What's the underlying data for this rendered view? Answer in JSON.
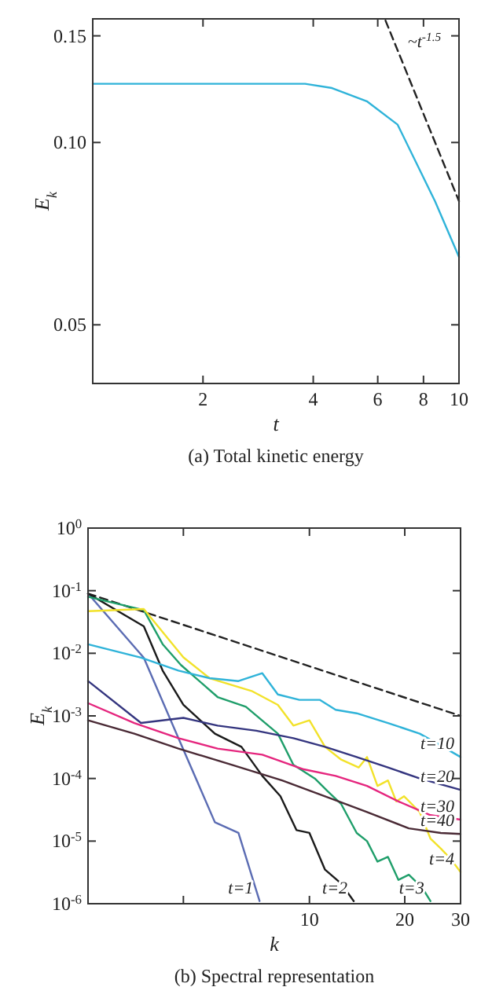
{
  "chart_data": [
    {
      "type": "line",
      "title": "(a) Total kinetic energy",
      "xlabel": "t",
      "ylabel": "E$_{k}$",
      "log": "xy",
      "xlim": [
        1,
        10
      ],
      "ylim": [
        0.04,
        0.16
      ],
      "xticks": [
        2,
        4,
        6,
        8,
        10
      ],
      "yticks": [
        {
          "value": 0.05,
          "label": "0.05"
        },
        {
          "value": 0.1,
          "label": "0.10"
        },
        {
          "value": 0.15,
          "label": "0.15"
        }
      ],
      "grid": false,
      "series": [
        {
          "color": "#2fb3d9",
          "x": [
            1,
            2,
            3,
            3.8,
            4.5,
            5.6,
            6.8,
            8.6,
            10
          ],
          "values": [
            0.125,
            0.125,
            0.125,
            0.125,
            0.123,
            0.117,
            0.107,
            0.08,
            0.0647
          ]
        },
        {
          "color": "#222222",
          "line_style": "dashed",
          "x": [
            6.3,
            10
          ],
          "values": [
            0.159,
            0.08
          ]
        }
      ],
      "annotations": [
        "~t$^{-1.5}$"
      ]
    },
    {
      "type": "line",
      "title": "(b) Spectral representation",
      "xlabel": "k",
      "ylabel": "E$_{k}$",
      "log": "xy",
      "xlim": [
        2,
        30
      ],
      "ylim": [
        1e-06,
        1
      ],
      "xticks": [
        {
          "value": 4,
          "label": null
        },
        10,
        20,
        30
      ],
      "yticks": [
        {
          "value": 1e-06,
          "label": "10$^{-6}$"
        },
        {
          "value": 1e-05,
          "label": "10$^{-5}$"
        },
        {
          "value": 0.0001,
          "label": "10$^{-4}$"
        },
        {
          "value": 0.001,
          "label": "10$^{-3}$"
        },
        {
          "value": 0.01,
          "label": "10$^{-2}$"
        },
        {
          "value": 0.1,
          "label": "10$^{-1}$"
        },
        {
          "value": 1,
          "label": "10$^{0}$"
        }
      ],
      "grid": false,
      "series": [
        {
          "color": "#222222",
          "line_style": "dashed",
          "x": [
            2,
            30
          ],
          "values": [
            0.09,
            0.001
          ]
        },
        {
          "name": "t=1",
          "color": "#5b6cb3",
          "x": [
            2,
            3.0,
            3.86,
            5.03,
            5.97,
            6.96
          ],
          "values": [
            0.09,
            0.0085,
            0.00044,
            2e-05,
            1.35e-05,
            1.1e-06
          ]
        },
        {
          "name": "t=2",
          "color": "#1a1a1a",
          "x": [
            2,
            3.0,
            3.44,
            4.0,
            5.03,
            6.1,
            7.1,
            8.1,
            9.1,
            10,
            11.2,
            12.6,
            13.8
          ],
          "values": [
            0.09,
            0.027,
            0.0053,
            0.0015,
            0.00052,
            0.00032,
            0.00011,
            5.2e-05,
            1.5e-05,
            1.35e-05,
            3.5e-06,
            2.1e-06,
            1.1e-06
          ]
        },
        {
          "name": "t=3",
          "color": "#1f9e6a",
          "x": [
            2,
            3.0,
            3.44,
            3.93,
            5.13,
            6.3,
            7.95,
            8.9,
            10.4,
            11.4,
            12.6,
            14.1,
            15.2,
            16.4,
            17.7,
            19.1,
            20.6,
            22.7,
            24.1
          ],
          "values": [
            0.08,
            0.049,
            0.014,
            0.0065,
            0.002,
            0.0014,
            0.00052,
            0.000165,
            0.0001,
            6.3e-05,
            3.9e-05,
            1.35e-05,
            1e-05,
            4.7e-06,
            5.6e-06,
            2.4e-06,
            2.9e-06,
            1.8e-06,
            1.1e-06
          ]
        },
        {
          "name": "t=4",
          "color": "#f2e22a",
          "x": [
            2,
            3.0,
            4.0,
            4.84,
            6.57,
            7.95,
            8.9,
            10,
            11.2,
            12.6,
            14.3,
            15.2,
            16.4,
            17.7,
            18.8,
            19.9,
            22.3,
            24.1,
            26,
            28,
            30
          ],
          "values": [
            0.047,
            0.051,
            0.0086,
            0.004,
            0.0025,
            0.0015,
            0.0007,
            0.00085,
            0.00032,
            0.0002,
            0.00015,
            0.00022,
            7.6e-05,
            9.3e-05,
            4.3e-05,
            5.2e-05,
            2.9e-05,
            1.1e-05,
            7.6e-06,
            5.1e-06,
            3.2e-06
          ]
        },
        {
          "name": "t=10",
          "color": "#2fb3d9",
          "x": [
            2,
            2.94,
            3.86,
            4.84,
            5.97,
            7.1,
            7.95,
            9.3,
            10.8,
            12.1,
            14.1,
            17.7,
            22.3,
            27,
            30
          ],
          "values": [
            0.0139,
            0.0085,
            0.0053,
            0.004,
            0.0036,
            0.0048,
            0.0022,
            0.0018,
            0.0018,
            0.00125,
            0.0011,
            0.00077,
            0.00052,
            0.0003,
            0.00022
          ]
        },
        {
          "name": "t=20",
          "color": "#34357f",
          "x": [
            2,
            2.94,
            4.0,
            5.13,
            6.8,
            8.9,
            11.2,
            14.1,
            17.7,
            22.3,
            30
          ],
          "values": [
            0.0036,
            0.00077,
            0.00093,
            0.0007,
            0.00058,
            0.00044,
            0.00032,
            0.00022,
            0.00015,
            0.0001,
            6.6e-05
          ]
        },
        {
          "name": "t=30",
          "color": "#e5267e",
          "x": [
            2,
            2.8,
            3.86,
            5.13,
            7.1,
            9.6,
            12.1,
            15.2,
            19.1,
            24.1,
            30
          ],
          "values": [
            0.0016,
            0.00077,
            0.00044,
            0.0003,
            0.00024,
            0.00014,
            0.00011,
            7.6e-05,
            4.3e-05,
            2.6e-05,
            2.2e-05
          ]
        },
        {
          "name": "t=40",
          "color": "#4a2a35",
          "x": [
            2,
            2.8,
            3.86,
            5.7,
            8.2,
            11.2,
            15.2,
            20.6,
            26,
            30
          ],
          "values": [
            0.00085,
            0.00052,
            0.0003,
            0.000165,
            9.3e-05,
            5.2e-05,
            2.9e-05,
            1.6e-05,
            1.35e-05,
            1.3e-05
          ]
        }
      ]
    }
  ]
}
